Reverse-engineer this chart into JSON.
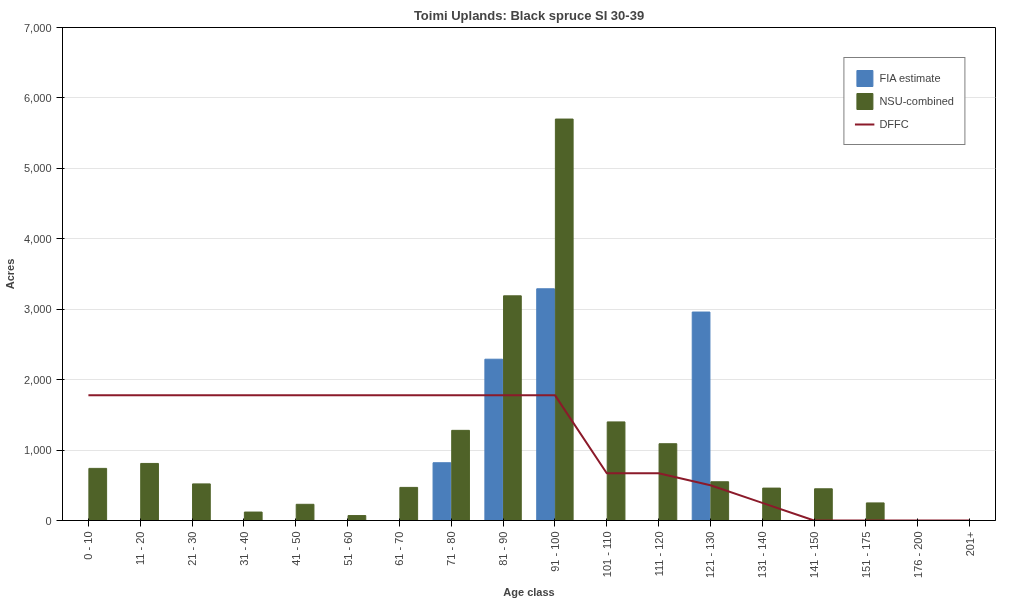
{
  "chart_data": {
    "type": "bar",
    "title": "Toimi Uplands: Black spruce SI 30-39",
    "xlabel": "Age class",
    "ylabel": "Acres",
    "categories": [
      "0 - 10",
      "11 - 20",
      "21 - 30",
      "31 - 40",
      "41 - 50",
      "51 - 60",
      "61 - 70",
      "71 - 80",
      "81 - 90",
      "91 - 100",
      "101 - 110",
      "111 - 120",
      "121 - 130",
      "131 - 140",
      "141 - 150",
      "151 - 175",
      "176 - 200",
      "201+"
    ],
    "series": [
      {
        "name": "FIA estimate",
        "color": "#4a7ebb",
        "values": [
          0,
          0,
          0,
          0,
          0,
          0,
          0,
          820,
          2290,
          3290,
          0,
          0,
          2960,
          0,
          0,
          0,
          0,
          0
        ]
      },
      {
        "name": "NSU-combined",
        "color": "#4f6228",
        "values": [
          740,
          810,
          520,
          120,
          230,
          70,
          470,
          1280,
          3190,
          5700,
          1400,
          1090,
          550,
          460,
          450,
          250,
          0,
          0
        ]
      },
      {
        "name": "DFFC",
        "type": "line",
        "color": "#8b1a2a",
        "values": [
          1780,
          1780,
          1780,
          1780,
          1780,
          1780,
          1780,
          1780,
          1780,
          1780,
          670,
          670,
          500,
          250,
          0,
          0,
          0,
          0
        ]
      }
    ],
    "ylim": [
      0,
      7000
    ],
    "yticks": [
      {
        "value": 0,
        "label": "0"
      },
      {
        "value": 1000,
        "label": "1,000"
      },
      {
        "value": 2000,
        "label": "2,000"
      },
      {
        "value": 3000,
        "label": "3,000"
      },
      {
        "value": 4000,
        "label": "4,000"
      },
      {
        "value": 5000,
        "label": "5,000"
      },
      {
        "value": 6000,
        "label": "6,000"
      },
      {
        "value": 7000,
        "label": "7,000"
      }
    ],
    "grid": "y",
    "legend": "top right"
  }
}
